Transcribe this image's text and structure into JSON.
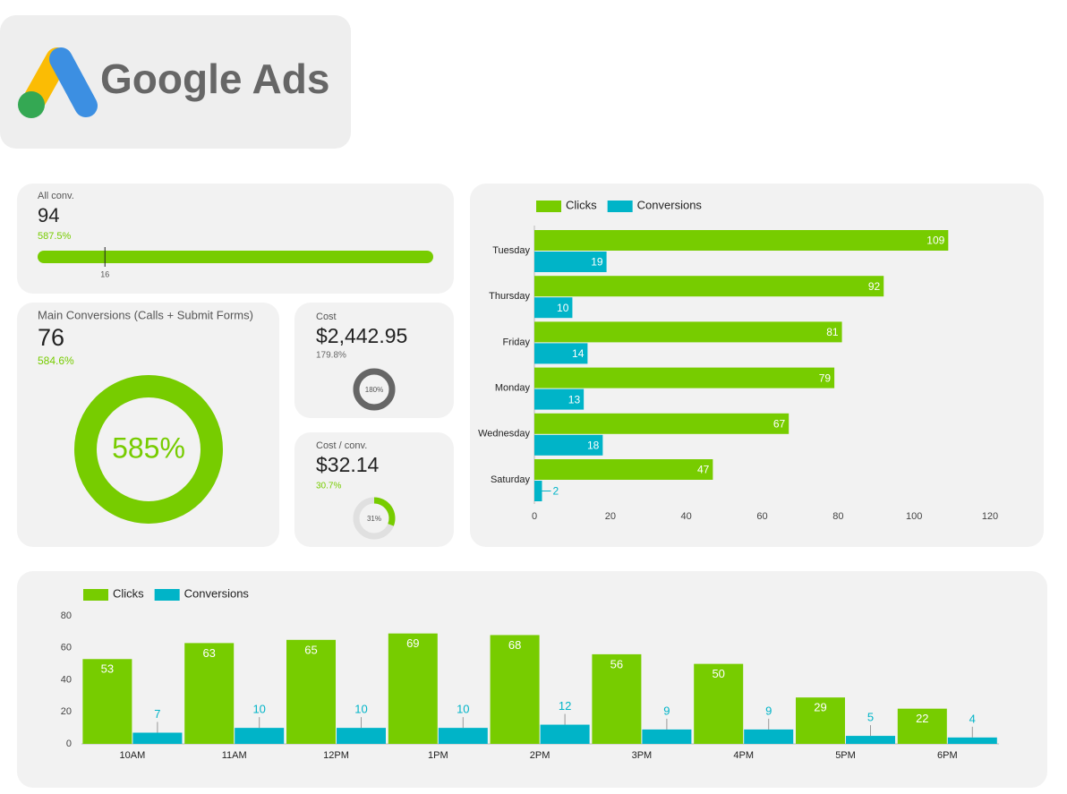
{
  "header": {
    "title": "Google Ads"
  },
  "scorecards": [
    {
      "label": "All conv.",
      "value": 94,
      "change": {
        "value": 587.5,
        "label": "587.5%"
      },
      "color": "#77cc00",
      "target": 16
    },
    {
      "label": "Main Conversions (Calls + Submit Forms)",
      "value": 76,
      "change": {
        "value": 584.6,
        "label": "584.6%"
      },
      "color": "#77cc00",
      "ring": {
        "value": 585,
        "label": "585%"
      }
    },
    {
      "label": "Cost",
      "value": {
        "value": 2442.95,
        "label": "$2,442.95"
      },
      "change": {
        "value": 179.8,
        "label": "179.8%"
      },
      "color": "#666666",
      "ring": {
        "value": 180,
        "label": "180%"
      }
    },
    {
      "label": "Cost / conv.",
      "value": {
        "value": 32.14,
        "label": "$32.14"
      },
      "change": {
        "value": 30.7,
        "label": "30.7%"
      },
      "color": "#77cc00",
      "ring": {
        "value": 31,
        "label": "31%"
      }
    }
  ],
  "chart_data": [
    {
      "type": "hbar",
      "categories": [
        "Tuesday",
        "Thursday",
        "Friday",
        "Monday",
        "Wednesday",
        "Saturday"
      ],
      "series": [
        {
          "name": "Clicks",
          "color": "#77cc00",
          "values": [
            109,
            92,
            81,
            79,
            67,
            47
          ]
        },
        {
          "name": "Conversions",
          "color": "#00b4c8",
          "values": [
            19,
            10,
            14,
            13,
            18,
            2
          ]
        }
      ],
      "xlim": [
        0,
        120
      ],
      "xticks": [
        0,
        20,
        40,
        60,
        80,
        100,
        120
      ]
    },
    {
      "type": "bar",
      "categories": [
        "10AM",
        "11AM",
        "12PM",
        "1PM",
        "2PM",
        "3PM",
        "4PM",
        "5PM",
        "6PM"
      ],
      "series": [
        {
          "name": "Clicks",
          "color": "#77cc00",
          "values": [
            53,
            63,
            65,
            69,
            68,
            56,
            50,
            29,
            22
          ]
        },
        {
          "name": "Conversions",
          "color": "#00b4c8",
          "values": [
            7,
            10,
            10,
            10,
            12,
            9,
            9,
            5,
            4
          ]
        }
      ],
      "ylim": [
        0,
        80
      ],
      "yticks": [
        0,
        20,
        40,
        60,
        80
      ]
    }
  ]
}
